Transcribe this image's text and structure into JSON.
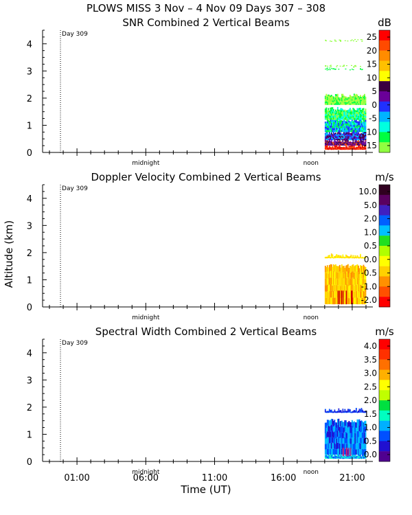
{
  "title": "PLOWS MISS   3 Nov –  4 Nov 09 Days 307 – 308",
  "chart_data": [
    {
      "type": "heatmap",
      "title": "SNR Combined 2 Vertical Beams",
      "colorbar_unit": "dB",
      "colorbar_ticks": [
        "25",
        "20",
        "15",
        "10",
        "5",
        "0",
        "-5",
        "-10",
        "-15"
      ],
      "colorbar_colors": [
        "#ff0000",
        "#ff4a00",
        "#ff8c00",
        "#ffc000",
        "#ffff00",
        "#3a0040",
        "#6a0099",
        "#2030ff",
        "#00b4ff",
        "#00ffe0",
        "#00ff40",
        "#90ff40"
      ],
      "ylim": [
        0,
        4.5
      ],
      "data_start_hour": 19,
      "data_end_hour": 22
    },
    {
      "type": "heatmap",
      "title": "Doppler Velocity Combined 2 Vertical Beams",
      "colorbar_unit": "m/s",
      "colorbar_ticks": [
        "10.0",
        "5.0",
        "2.0",
        "1.0",
        "0.5",
        "0.0",
        "-0.5",
        "-1.0",
        "-2.0"
      ],
      "colorbar_colors": [
        "#300020",
        "#5a0060",
        "#4020c0",
        "#0060ff",
        "#00c0ff",
        "#20e020",
        "#b0ff00",
        "#ffff00",
        "#ffd000",
        "#ff9000",
        "#ff5000",
        "#ff0000"
      ],
      "ylim": [
        0,
        4.5
      ],
      "data_start_hour": 19,
      "data_end_hour": 22
    },
    {
      "type": "heatmap",
      "title": "Spectral Width Combined 2 Vertical Beams",
      "colorbar_unit": "m/s",
      "colorbar_ticks": [
        "4.0",
        "3.5",
        "3.0",
        "2.5",
        "2.0",
        "1.5",
        "1.0",
        "0.5",
        "0.0"
      ],
      "colorbar_colors": [
        "#ff0000",
        "#ff3000",
        "#ff7000",
        "#ffb000",
        "#ffff00",
        "#c0ff00",
        "#00e040",
        "#00ffc0",
        "#00b0ff",
        "#0050ff",
        "#2010d0",
        "#500090"
      ],
      "ylim": [
        0,
        4.5
      ],
      "data_start_hour": 19,
      "data_end_hour": 22
    }
  ],
  "y_ticks": [
    "0",
    "1",
    "2",
    "3",
    "4"
  ],
  "y_axis_label": "Altitude (km)",
  "x_axis_label": "Time (UT)",
  "x_tick_labels": [
    "01:00",
    "06:00",
    "11:00",
    "16:00",
    "21:00"
  ],
  "x_tick_hours": [
    1,
    6,
    11,
    16,
    21
  ],
  "x_range_hours": [
    -1.5,
    22.5
  ],
  "day_marker_label": "Day 309",
  "day_marker_hour": -0.2,
  "midnight_label": "midnight",
  "midnight_hour": 6,
  "noon_label": "noon",
  "noon_hour": 18
}
